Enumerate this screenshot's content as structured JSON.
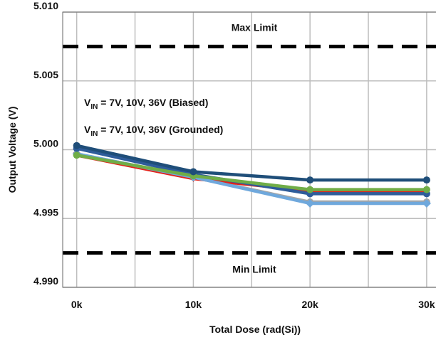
{
  "chart_data": {
    "type": "line",
    "title": "",
    "xlabel": "Total Dose (rad(Si))",
    "ylabel": "Output Voltage (V)",
    "xlim": [
      -1200,
      30800
    ],
    "ylim": [
      4.99,
      5.01
    ],
    "x_ticks": [
      0,
      10000,
      20000,
      30000
    ],
    "x_tick_labels": [
      "0k",
      "10k",
      "20k",
      "30k"
    ],
    "y_ticks": [
      4.99,
      4.995,
      5.0,
      5.005,
      5.01
    ],
    "y_tick_labels": [
      "4.990",
      "4.995",
      "5.000",
      "5.005",
      "5.010"
    ],
    "grid": true,
    "limits": [
      {
        "label": "Max Limit",
        "value": 5.0075
      },
      {
        "label": "Min Limit",
        "value": 4.9925
      }
    ],
    "annotations": [
      {
        "prefix": "V",
        "sub": "IN",
        "suffix": " = 7V, 10V, 36V (Biased)"
      },
      {
        "prefix": "V",
        "sub": "IN",
        "suffix": " = 7V, 10V, 36V (Grounded)"
      }
    ],
    "x": [
      0,
      10000,
      20000,
      30000
    ],
    "series": [
      {
        "color": "#a6a6a6",
        "values": [
          4.9997,
          4.998,
          4.9962,
          4.9962
        ]
      },
      {
        "color": "#e2231a",
        "values": [
          4.9996,
          4.9979,
          4.997,
          4.997
        ]
      },
      {
        "color": "#6fa8dc",
        "values": [
          4.9997,
          4.998,
          4.9961,
          4.9961
        ]
      },
      {
        "color": "#2e5c9a",
        "values": [
          5.0001,
          4.9982,
          4.9968,
          4.9968
        ]
      },
      {
        "color": "#70ad47",
        "values": [
          4.9996,
          4.9981,
          4.9971,
          4.9971
        ]
      },
      {
        "color": "#1f4e79",
        "values": [
          5.0003,
          4.9984,
          4.9978,
          4.9978
        ]
      }
    ]
  }
}
